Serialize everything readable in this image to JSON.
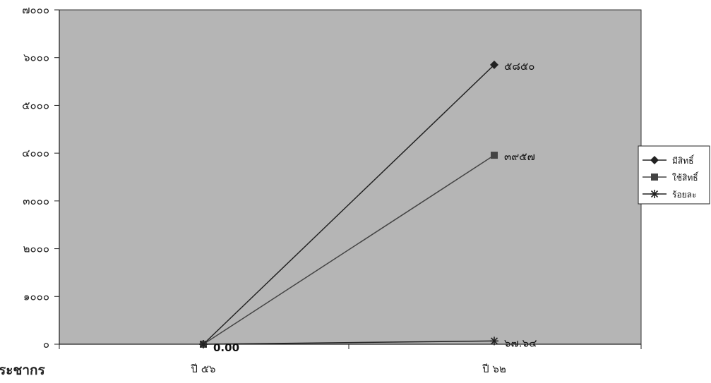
{
  "chart_data": {
    "type": "line",
    "categories": [
      "ปี ๕๖",
      "ปี ๖๒"
    ],
    "y_ticks": [
      "๐",
      "๑๐๐๐",
      "๒๐๐๐",
      "๓๐๐๐",
      "๔๐๐๐",
      "๕๐๐๐",
      "๖๐๐๐",
      "๗๐๐๐"
    ],
    "ylim": [
      0,
      7000
    ],
    "grid": false,
    "legend_position": "right",
    "plot_background": "#b5b5b5",
    "series": [
      {
        "name": "มีสิทธิ์",
        "marker": "diamond",
        "color": "#222222",
        "values": [
          0,
          5850
        ],
        "data_labels": [
          "",
          "๕๘๕๐"
        ]
      },
      {
        "name": "ใช้สิทธิ์",
        "marker": "square",
        "color": "#444444",
        "values": [
          0,
          3957
        ],
        "data_labels": [
          "",
          "๓๙๕๗"
        ]
      },
      {
        "name": "ร้อยละ",
        "marker": "star",
        "color": "#222222",
        "values": [
          0,
          67.64
        ],
        "data_labels": [
          "0.00",
          "๖๗.๖๔"
        ]
      }
    ]
  },
  "footer": {
    "partial_text": "ประชากร"
  }
}
